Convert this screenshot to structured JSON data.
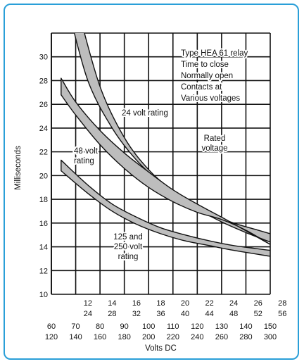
{
  "frame_color": "#2a9fd8",
  "chart_data": {
    "type": "line",
    "ylabel": "Milliseconds",
    "xlabel": "Volts DC",
    "ylim": [
      10,
      32
    ],
    "y_ticks": [
      10,
      12,
      14,
      16,
      18,
      20,
      22,
      24,
      26,
      28,
      30
    ],
    "xlim": [
      60,
      150
    ],
    "x_ticks_row1": [
      "60",
      "70",
      "80",
      "90",
      "100",
      "110",
      "120",
      "130",
      "140",
      "150"
    ],
    "x_ticks_row2": [
      "120",
      "140",
      "160",
      "180",
      "200",
      "220",
      "240",
      "260",
      "280",
      "300"
    ],
    "x_ticks_24v_top": [
      "12",
      "14",
      "16",
      "18",
      "20",
      "22",
      "24",
      "26",
      "28"
    ],
    "x_ticks_24v_bottom": [
      "24",
      "28",
      "32",
      "36",
      "40",
      "44",
      "48",
      "52",
      "56"
    ],
    "grid": true,
    "band_color": "#bdbdbd",
    "annotation": [
      "Type HEA 61 relay",
      "Time to close",
      "Normally open",
      "Contacts at",
      "Various voltages"
    ],
    "series": [
      {
        "name": "24 volt rating",
        "label_lines": [
          "24 volt rating"
        ],
        "upper": [
          [
            67,
            34
          ],
          [
            75,
            28
          ],
          [
            85,
            24
          ],
          [
            95,
            21.3
          ],
          [
            105,
            19.4
          ],
          [
            115,
            17.9
          ],
          [
            125,
            16.8
          ],
          [
            135,
            16
          ],
          [
            145,
            15.4
          ],
          [
            150,
            15.1
          ]
        ],
        "lower": [
          [
            71,
            34
          ],
          [
            80,
            27.5
          ],
          [
            90,
            23.2
          ],
          [
            100,
            20.5
          ],
          [
            110,
            18.7
          ],
          [
            120,
            17.2
          ],
          [
            130,
            16.1
          ],
          [
            140,
            15.2
          ],
          [
            150,
            14.4
          ]
        ]
      },
      {
        "name": "48 volt rating",
        "label_lines": [
          "48 volt",
          "rating"
        ],
        "upper": [
          [
            64,
            28.2
          ],
          [
            70,
            26.2
          ],
          [
            80,
            23.8
          ],
          [
            90,
            21.9
          ],
          [
            100,
            20.3
          ],
          [
            110,
            18.8
          ],
          [
            120,
            17.6
          ],
          [
            130,
            16.5
          ]
        ],
        "lower": [
          [
            64,
            26.8
          ],
          [
            70,
            25.1
          ],
          [
            80,
            22.6
          ],
          [
            90,
            20.6
          ],
          [
            100,
            19
          ],
          [
            110,
            17.8
          ],
          [
            120,
            16.9
          ],
          [
            130,
            16.3
          ],
          [
            140,
            15.4
          ],
          [
            150,
            14.2
          ]
        ]
      },
      {
        "name": "125 and 250 volt rating",
        "label_lines": [
          "125 and",
          "250 volt",
          "rating"
        ],
        "upper": [
          [
            64,
            21.3
          ],
          [
            75,
            19.2
          ],
          [
            85,
            17.6
          ],
          [
            95,
            16.5
          ],
          [
            105,
            15.6
          ],
          [
            115,
            15
          ],
          [
            125,
            14.5
          ],
          [
            135,
            14.1
          ],
          [
            150,
            13.7
          ]
        ],
        "lower": [
          [
            64,
            20.4
          ],
          [
            75,
            18.5
          ],
          [
            85,
            17
          ],
          [
            95,
            15.9
          ],
          [
            105,
            15.1
          ],
          [
            115,
            14.5
          ],
          [
            125,
            14.1
          ],
          [
            135,
            13.7
          ],
          [
            150,
            13.2
          ]
        ]
      }
    ],
    "rated_voltage": {
      "label_lines": [
        "Rated",
        "voltage"
      ],
      "x": 125
    }
  }
}
